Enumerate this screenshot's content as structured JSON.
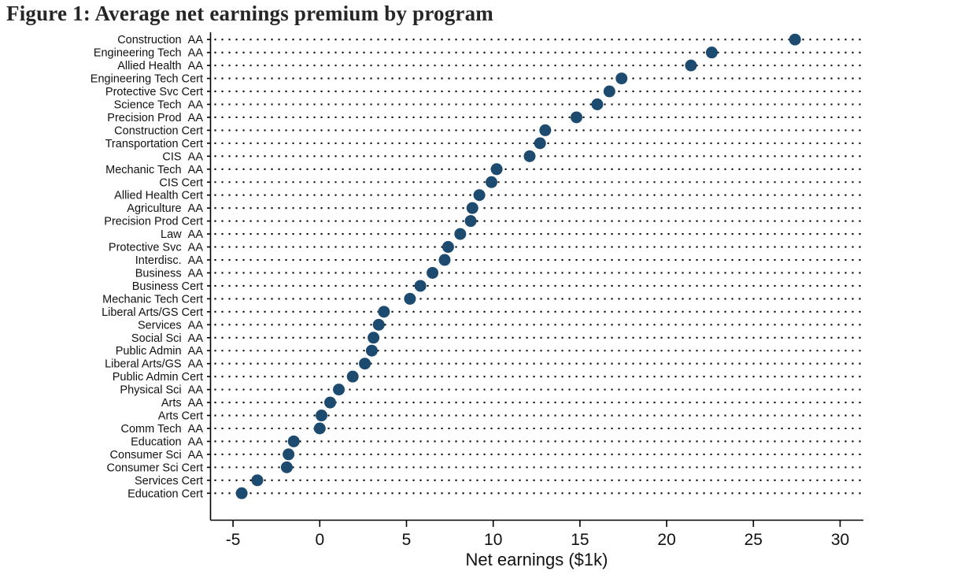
{
  "title": "Figure 1: Average net earnings premium by program",
  "colors": {
    "dot": "#1d4b70",
    "grid": "#000000",
    "axis": "#000000",
    "title_text": "#262626",
    "label_text": "#111111"
  },
  "chart_data": {
    "type": "scatter",
    "subtype": "horizontal-dot-plot",
    "title": "Figure 1: Average net earnings premium by program",
    "xlabel": "Net earnings ($1k)",
    "ylabel": "",
    "xlim": [
      -6.3,
      31.2
    ],
    "xticks": [
      -5,
      0,
      5,
      10,
      15,
      20,
      25,
      30
    ],
    "grid": "dotted horizontal leader line per category",
    "legend": "none",
    "categories": [
      "Construction  AA",
      "Engineering Tech  AA",
      "Allied Health  AA",
      "Engineering Tech Cert",
      "Protective Svc Cert",
      "Science Tech  AA",
      "Precision Prod  AA",
      "Construction Cert",
      "Transportation Cert",
      "CIS  AA",
      "Mechanic Tech  AA",
      "CIS Cert",
      "Allied Health Cert",
      "Agriculture  AA",
      "Precision Prod Cert",
      "Law  AA",
      "Protective Svc  AA",
      "Interdisc.  AA",
      "Business  AA",
      "Business Cert",
      "Mechanic Tech Cert",
      "Liberal Arts/GS Cert",
      "Services  AA",
      "Social Sci  AA",
      "Public Admin  AA",
      "Liberal Arts/GS  AA",
      "Public Admin Cert",
      "Physical Sci  AA",
      "Arts  AA",
      "Arts Cert",
      "Comm Tech  AA",
      "Education  AA",
      "Consumer Sci  AA",
      "Consumer Sci Cert",
      "Services Cert",
      "Education Cert"
    ],
    "values": [
      27.4,
      22.6,
      21.4,
      17.4,
      16.7,
      16.0,
      14.8,
      13.0,
      12.7,
      12.1,
      10.2,
      9.9,
      9.2,
      8.8,
      8.7,
      8.1,
      7.4,
      7.2,
      6.5,
      5.8,
      5.2,
      3.7,
      3.4,
      3.1,
      3.0,
      2.6,
      1.9,
      1.1,
      0.6,
      0.1,
      0.0,
      -1.5,
      -1.8,
      -1.9,
      -3.6,
      -4.5
    ]
  }
}
